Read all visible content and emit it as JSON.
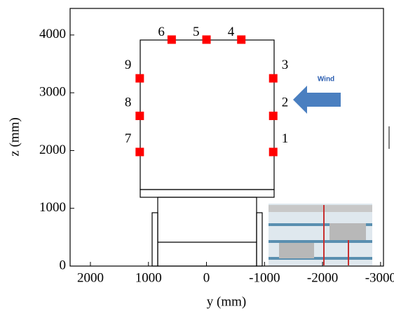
{
  "chart_data": {
    "type": "scatter",
    "x_label": "y (mm)",
    "y_label": "z (mm)",
    "x": [
      -1150,
      -1150,
      -1150,
      -600,
      0,
      600,
      1150,
      1150,
      1150
    ],
    "values": [
      1975,
      2600,
      3250,
      3920,
      3920,
      3920,
      1975,
      2600,
      3250
    ],
    "labels": [
      "1",
      "2",
      "3",
      "4",
      "5",
      "6",
      "7",
      "8",
      "9"
    ],
    "color": "#ff0000",
    "xlim": [
      2350,
      -3050
    ],
    "xticks": [
      2000,
      1000,
      0,
      -1000,
      -2000,
      -3000
    ],
    "ylim": [
      0,
      4460
    ],
    "yticks": [
      0,
      1000,
      2000,
      3000,
      4000
    ],
    "annotation": "Wind"
  }
}
